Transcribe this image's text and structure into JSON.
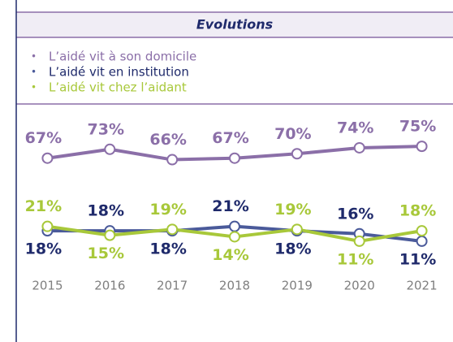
{
  "chart_data": {
    "type": "line",
    "title": "Evolutions",
    "categories": [
      "2015",
      "2016",
      "2017",
      "2018",
      "2019",
      "2020",
      "2021"
    ],
    "ylim": [
      0,
      80
    ],
    "series": [
      {
        "name": "L’aidé vit à son domicile",
        "color": "#8b6fa8",
        "label_color": "#8b6fa8",
        "values": [
          67,
          73,
          66,
          67,
          70,
          74,
          75
        ],
        "value_labels": [
          "67%",
          "73%",
          "66%",
          "67%",
          "70%",
          "74%",
          "75%"
        ]
      },
      {
        "name": "L’aidé vit en institution",
        "color": "#4a5a9a",
        "label_color": "#1f2a6b",
        "values": [
          18,
          18,
          18,
          21,
          18,
          16,
          11
        ],
        "value_labels": [
          "18%",
          "18%",
          "18%",
          "21%",
          "18%",
          "16%",
          "11%"
        ]
      },
      {
        "name": "L’aidé vit chez l’aidant",
        "color": "#a8c83a",
        "label_color": "#a8c83a",
        "values": [
          21,
          15,
          19,
          14,
          19,
          11,
          18
        ],
        "value_labels": [
          "21%",
          "15%",
          "19%",
          "14%",
          "19%",
          "11%",
          "18%"
        ]
      }
    ]
  }
}
